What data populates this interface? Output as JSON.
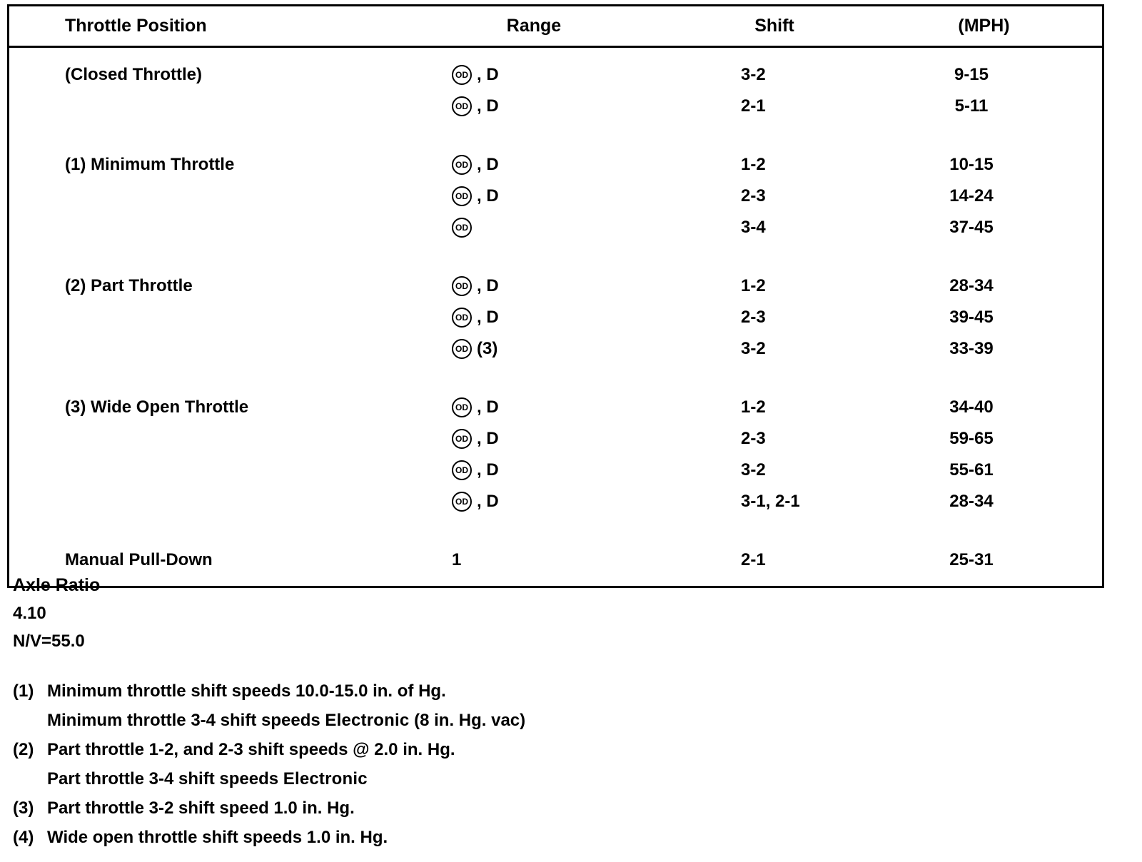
{
  "colors": {
    "ink": "#000000",
    "paper": "#ffffff"
  },
  "table": {
    "headers": [
      "Throttle Position",
      "Range",
      "Shift",
      "(MPH)"
    ],
    "od_symbol": "OD",
    "rows": [
      {
        "gap": false,
        "position": "(Closed Throttle)",
        "od": true,
        "range_text": ", D",
        "shift": "3-2",
        "mph": "9-15"
      },
      {
        "gap": false,
        "position": "",
        "od": true,
        "range_text": ", D",
        "shift": "2-1",
        "mph": "5-11"
      },
      {
        "gap": true,
        "position": "(1) Minimum Throttle",
        "od": true,
        "range_text": ", D",
        "shift": "1-2",
        "mph": "10-15"
      },
      {
        "gap": false,
        "position": "",
        "od": true,
        "range_text": ", D",
        "shift": "2-3",
        "mph": "14-24"
      },
      {
        "gap": false,
        "position": "",
        "od": true,
        "range_text": "",
        "shift": "3-4",
        "mph": "37-45"
      },
      {
        "gap": true,
        "position": "(2) Part Throttle",
        "od": true,
        "range_text": ", D",
        "shift": "1-2",
        "mph": "28-34"
      },
      {
        "gap": false,
        "position": "",
        "od": true,
        "range_text": ", D",
        "shift": "2-3",
        "mph": "39-45"
      },
      {
        "gap": false,
        "position": "",
        "od": true,
        "range_text": " (3)",
        "shift": "3-2",
        "mph": "33-39"
      },
      {
        "gap": true,
        "position": "(3) Wide Open Throttle",
        "od": true,
        "range_text": ", D",
        "shift": "1-2",
        "mph": "34-40"
      },
      {
        "gap": false,
        "position": "",
        "od": true,
        "range_text": ", D",
        "shift": "2-3",
        "mph": "59-65"
      },
      {
        "gap": false,
        "position": "",
        "od": true,
        "range_text": ", D",
        "shift": "3-2",
        "mph": "55-61"
      },
      {
        "gap": false,
        "position": "",
        "od": true,
        "range_text": ", D",
        "shift": "3-1, 2-1",
        "mph": "28-34"
      },
      {
        "gap": true,
        "position": "Manual Pull-Down",
        "od": false,
        "range_text": "1",
        "shift": "2-1",
        "mph": "25-31"
      }
    ]
  },
  "axle": {
    "title": "Axle Ratio",
    "lines": [
      "4.10",
      "N/V=55.0"
    ]
  },
  "footnotes": [
    {
      "num": "(1)",
      "lines": [
        [
          {
            "t": "Minimum throttle shift speeds 10.0-15.0 in. of Hg."
          }
        ],
        [
          {
            "t": "Minimum throttle 3-4 shift speeds "
          },
          {
            "t": "Electronic",
            "b": true
          },
          {
            "t": " (8 in. Hg. vac)"
          }
        ]
      ]
    },
    {
      "num": "(2)",
      "lines": [
        [
          {
            "t": "Part throttle 1-2, and 2-3 shift speeds @ 2.0 in. Hg."
          }
        ],
        [
          {
            "t": "Part throttle 3-4 shift speeds "
          },
          {
            "t": "Electronic",
            "b": true
          }
        ]
      ]
    },
    {
      "num": "(3)",
      "lines": [
        [
          {
            "t": "Part throttle 3-2 shift speed 1.0 in. Hg."
          }
        ]
      ]
    },
    {
      "num": "(4)",
      "lines": [
        [
          {
            "t": "Wide open throttle shift speeds 1.0 in. Hg."
          }
        ]
      ]
    }
  ]
}
